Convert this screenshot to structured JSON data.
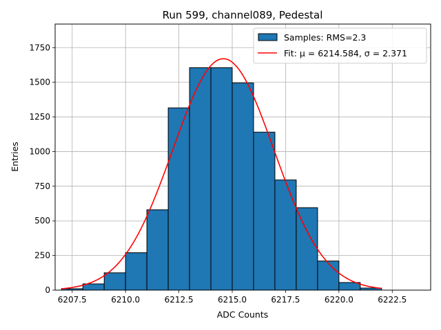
{
  "chart_data": {
    "type": "bar",
    "title": "Run 599, channel089, Pedestal",
    "xlabel": "ADC Counts",
    "ylabel": "Entries",
    "xlim": [
      6206.7,
      6224.3
    ],
    "ylim": [
      0,
      1920
    ],
    "xticks": [
      6207.5,
      6210.0,
      6212.5,
      6215.0,
      6217.5,
      6220.0,
      6222.5
    ],
    "xtick_labels": [
      "6207.5",
      "6210.0",
      "6212.5",
      "6215.0",
      "6217.5",
      "6220.0",
      "6222.5"
    ],
    "yticks": [
      0,
      250,
      500,
      750,
      1000,
      1250,
      1500,
      1750
    ],
    "ytick_labels": [
      "0",
      "250",
      "500",
      "750",
      "1000",
      "1250",
      "1500",
      "1750"
    ],
    "grid": true,
    "legend_position": "top-right",
    "histogram": {
      "name": "Samples: RMS=2.3",
      "color": "#1f77b4",
      "bin_edges": [
        6207,
        6208,
        6209,
        6210,
        6211,
        6212,
        6213,
        6214,
        6215,
        6216,
        6217,
        6218,
        6219,
        6220,
        6221,
        6222
      ],
      "counts": [
        10,
        45,
        125,
        270,
        580,
        1315,
        1605,
        1605,
        1495,
        1140,
        795,
        595,
        210,
        55,
        15
      ]
    },
    "fit": {
      "name": "Fit: μ = 6214.584, σ = 2.371",
      "color": "#ff0000",
      "mu": 6214.584,
      "sigma": 2.371,
      "amplitude": 1670,
      "x_range": [
        6207,
        6222
      ]
    }
  }
}
